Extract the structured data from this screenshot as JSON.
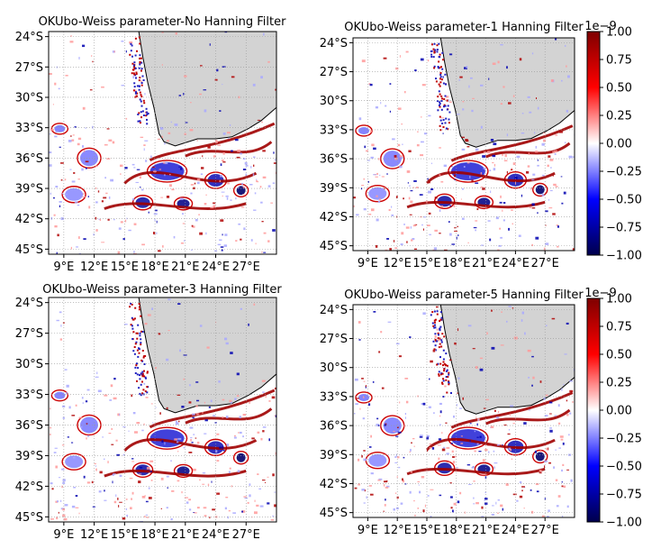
{
  "chart_data": [
    {
      "type": "heatmap",
      "title": "OKUbo-Weiss parameter-No Hanning Filter",
      "ytick_labels": [
        "24°S",
        "27°S",
        "30°S",
        "33°S",
        "36°S",
        "39°S",
        "42°S",
        "45°S"
      ],
      "xtick_labels": [
        "9°E",
        "12°E",
        "15°E",
        "18°E",
        "21°E",
        "24°E",
        "27°E"
      ],
      "lat_range": [
        -45.5,
        -23.5
      ],
      "lon_range": [
        7.5,
        30.0
      ],
      "grid": true,
      "land_color": "#d3d3d3"
    },
    {
      "type": "heatmap",
      "title": "OKUbo-Weiss parameter-1 Hanning Filter",
      "ytick_labels": [
        "24°S",
        "27°S",
        "30°S",
        "33°S",
        "36°S",
        "39°S",
        "42°S",
        "45°S"
      ],
      "xtick_labels": [
        "9°E",
        "12°E",
        "15°E",
        "18°E",
        "21°E",
        "24°E",
        "27°E"
      ],
      "lat_range": [
        -45.5,
        -23.5
      ],
      "lon_range": [
        7.5,
        30.0
      ],
      "grid": true,
      "land_color": "#d3d3d3",
      "colorbar": {
        "cmap": "seismic",
        "vmin": -1.0,
        "vmax": 1.0,
        "ticks": [
          "1.00",
          "0.75",
          "0.50",
          "0.25",
          "0.00",
          "−0.25",
          "−0.50",
          "−0.75",
          "−1.00"
        ],
        "offset_label": "1e−9"
      }
    },
    {
      "type": "heatmap",
      "title": "OKUbo-Weiss parameter-3 Hanning Filter",
      "ytick_labels": [
        "24°S",
        "27°S",
        "30°S",
        "33°S",
        "36°S",
        "39°S",
        "42°S",
        "45°S"
      ],
      "xtick_labels": [
        "9°E",
        "12°E",
        "15°E",
        "18°E",
        "21°E",
        "24°E",
        "27°E"
      ],
      "lat_range": [
        -45.5,
        -23.5
      ],
      "lon_range": [
        7.5,
        30.0
      ],
      "grid": true,
      "land_color": "#d3d3d3"
    },
    {
      "type": "heatmap",
      "title": "OKUbo-Weiss parameter-5 Hanning Filter",
      "ytick_labels": [
        "24°S",
        "27°S",
        "30°S",
        "33°S",
        "36°S",
        "39°S",
        "42°S",
        "45°S"
      ],
      "xtick_labels": [
        "9°E",
        "12°E",
        "15°E",
        "18°E",
        "21°E",
        "24°E",
        "27°E"
      ],
      "lat_range": [
        -45.5,
        -23.5
      ],
      "lon_range": [
        7.5,
        30.0
      ],
      "grid": true,
      "land_color": "#d3d3d3",
      "colorbar": {
        "cmap": "seismic",
        "vmin": -1.0,
        "vmax": 1.0,
        "ticks": [
          "1.00",
          "0.75",
          "0.50",
          "0.25",
          "0.00",
          "−0.25",
          "−0.50",
          "−0.75",
          "−1.00"
        ],
        "offset_label": "1e−9"
      }
    }
  ]
}
